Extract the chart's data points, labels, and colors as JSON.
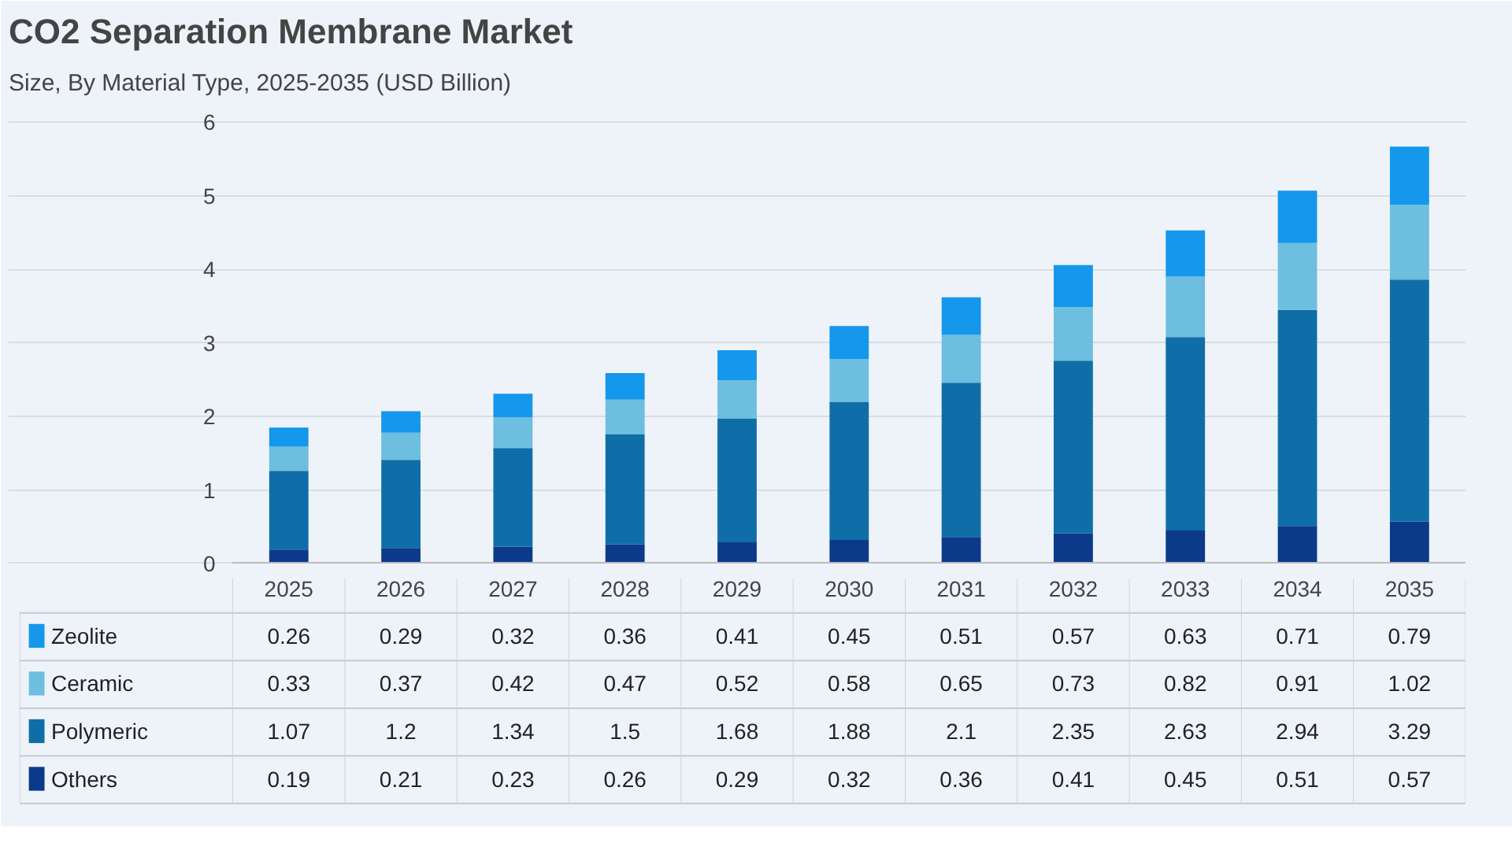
{
  "chart_data": {
    "type": "bar",
    "title": "CO2 Separation Membrane Market",
    "subtitle": "Size, By Material Type, 2025-2035 (USD Billion)",
    "categories": [
      "2025",
      "2026",
      "2027",
      "2028",
      "2029",
      "2030",
      "2031",
      "2032",
      "2033",
      "2034",
      "2035"
    ],
    "stacked": true,
    "data_labels": true,
    "legend": "bottom left",
    "grid": "y",
    "ylim": [
      0,
      6
    ],
    "yticks": [
      0,
      1,
      2,
      3,
      4,
      5,
      6
    ],
    "series": [
      {
        "name": "Others",
        "color": "#0b3a8a",
        "values": [
          0.19,
          0.21,
          0.23,
          0.26,
          0.29,
          0.32,
          0.36,
          0.41,
          0.45,
          0.51,
          0.57
        ]
      },
      {
        "name": "Polymeric",
        "color": "#0f6ea8",
        "values": [
          1.07,
          1.2,
          1.34,
          1.5,
          1.68,
          1.88,
          2.1,
          2.35,
          2.63,
          2.94,
          3.29
        ]
      },
      {
        "name": "Ceramic",
        "color": "#6dbedf",
        "values": [
          0.33,
          0.37,
          0.42,
          0.47,
          0.52,
          0.58,
          0.65,
          0.73,
          0.82,
          0.91,
          1.02
        ]
      },
      {
        "name": "Zeolite",
        "color": "#1597eb",
        "values": [
          0.26,
          0.29,
          0.32,
          0.36,
          0.41,
          0.45,
          0.51,
          0.57,
          0.63,
          0.71,
          0.79
        ]
      }
    ]
  }
}
